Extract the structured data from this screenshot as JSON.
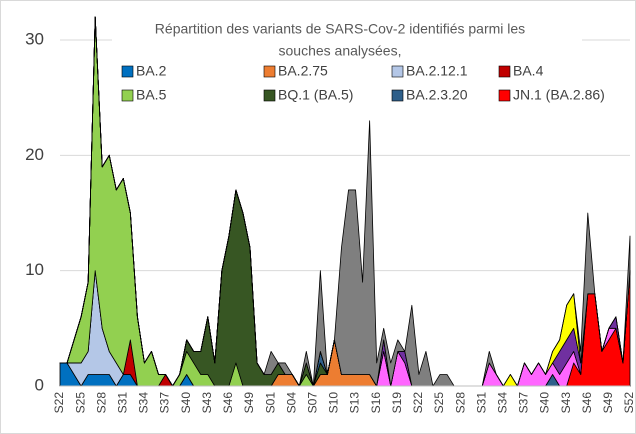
{
  "chart_data": {
    "type": "stacked_area",
    "title": [
      "Répartition des variants de SARS-Cov-2 identifiés parmi les",
      "souches analysées,"
    ],
    "categories": [
      "S22",
      null,
      null,
      "S25",
      null,
      null,
      "S28",
      null,
      null,
      "S31",
      null,
      null,
      "S34",
      null,
      null,
      "S37",
      null,
      null,
      "S40",
      null,
      null,
      "S43",
      null,
      null,
      "S46",
      null,
      null,
      "S49",
      null,
      null,
      "S01",
      null,
      null,
      "S04",
      null,
      null,
      "S07",
      null,
      null,
      "S10",
      null,
      null,
      "S13",
      null,
      null,
      "S16",
      null,
      null,
      "S19",
      null,
      null,
      "S22",
      null,
      null,
      "S25",
      null,
      null,
      "S28",
      null,
      null,
      "S31",
      null,
      null,
      "S34",
      null,
      null,
      "S37",
      null,
      null,
      "S40",
      null,
      null,
      "S43",
      null,
      null,
      "S46",
      null,
      null,
      "S49",
      null,
      null,
      "S52"
    ],
    "series": [
      {
        "name": "BA.2",
        "color": "#0070c0",
        "values": [
          2,
          2,
          1,
          0,
          1,
          1,
          1,
          1,
          0,
          1,
          1,
          0,
          0,
          0,
          0,
          0,
          0,
          0,
          1,
          0,
          0,
          0,
          0,
          0,
          0,
          0,
          0,
          0,
          0,
          0,
          0,
          0,
          0,
          0,
          0,
          0,
          0,
          0,
          0,
          0,
          0,
          0,
          0,
          0,
          0,
          0,
          0,
          0,
          0,
          0,
          0,
          0,
          0,
          0,
          0,
          0,
          0,
          0,
          0,
          0,
          0,
          0,
          0,
          0,
          0,
          0,
          0,
          0,
          0,
          0,
          0,
          0,
          0,
          0,
          0,
          0,
          0,
          0,
          0,
          0,
          0,
          0
        ]
      },
      {
        "name": "BA.2.75",
        "color": "#ed7d31",
        "values": [
          0,
          0,
          0,
          0,
          0,
          0,
          0,
          0,
          0,
          0,
          0,
          0,
          0,
          0,
          0,
          0,
          0,
          0,
          0,
          0,
          0,
          0,
          0,
          0,
          0,
          0,
          0,
          0,
          0,
          0,
          0,
          1,
          1,
          1,
          0,
          0,
          0,
          1,
          1,
          4,
          1,
          1,
          1,
          1,
          1,
          0,
          0,
          0,
          0,
          0,
          0,
          0,
          0,
          0,
          0,
          0,
          0,
          0,
          0,
          0,
          0,
          0,
          0,
          0,
          0,
          0,
          0,
          0,
          0,
          0,
          0,
          0,
          0,
          0,
          0,
          0,
          0,
          0,
          0,
          0,
          0,
          0
        ]
      },
      {
        "name": "BA.2.12.1",
        "color": "#b4c7e7",
        "values": [
          0,
          0,
          1,
          2,
          2,
          9,
          4,
          2,
          2,
          0,
          0,
          0,
          0,
          0,
          0,
          0,
          0,
          0,
          0,
          0,
          0,
          0,
          0,
          0,
          0,
          0,
          0,
          0,
          0,
          0,
          0,
          0,
          0,
          0,
          0,
          0,
          0,
          0,
          0,
          0,
          0,
          0,
          0,
          0,
          0,
          0,
          0,
          0,
          0,
          0,
          0,
          0,
          0,
          0,
          0,
          0,
          0,
          0,
          0,
          0,
          0,
          0,
          0,
          0,
          0,
          0,
          0,
          0,
          0,
          0,
          0,
          0,
          0,
          0,
          0,
          0,
          0,
          0,
          0,
          0,
          0,
          0
        ]
      },
      {
        "name": "BA.4",
        "color": "#c00000",
        "values": [
          0,
          0,
          0,
          0,
          0,
          0,
          0,
          0,
          0,
          0,
          3,
          0,
          0,
          0,
          0,
          1,
          0,
          0,
          0,
          0,
          0,
          0,
          0,
          0,
          0,
          0,
          0,
          0,
          0,
          0,
          0,
          0,
          0,
          0,
          0,
          0,
          0,
          0,
          0,
          0,
          0,
          0,
          0,
          0,
          0,
          0,
          0,
          0,
          0,
          0,
          0,
          0,
          0,
          0,
          0,
          0,
          0,
          0,
          0,
          0,
          0,
          0,
          0,
          0,
          0,
          0,
          0,
          0,
          0,
          0,
          0,
          0,
          0,
          0,
          0,
          0,
          0,
          0,
          0,
          0,
          0,
          0
        ]
      },
      {
        "name": "BA.5",
        "color": "#92d050",
        "values": [
          0,
          0,
          2,
          4,
          6,
          22,
          14,
          17,
          15,
          17,
          11,
          6,
          2,
          3,
          1,
          0,
          0,
          1,
          2,
          2,
          1,
          1,
          0,
          0,
          0,
          2,
          0,
          0,
          0,
          0,
          0,
          0,
          0,
          0,
          0,
          1,
          0,
          0,
          0,
          0,
          0,
          0,
          0,
          0,
          0,
          0,
          0,
          0,
          0,
          0,
          0,
          0,
          0,
          0,
          0,
          0,
          0,
          0,
          0,
          0,
          0,
          0,
          0,
          0,
          0,
          0,
          0,
          0,
          0,
          0,
          0,
          0,
          0,
          0,
          0,
          0,
          0,
          0,
          0,
          0,
          0,
          0
        ]
      },
      {
        "name": "BQ.1 (BA.5)",
        "color": "#375623",
        "values": [
          0,
          0,
          0,
          0,
          0,
          0,
          0,
          0,
          0,
          0,
          0,
          0,
          0,
          0,
          0,
          0,
          0,
          0,
          1,
          1,
          2,
          5,
          2,
          10,
          13,
          15,
          15,
          12,
          2,
          1,
          1,
          1,
          0,
          0,
          0,
          1,
          0,
          1,
          0,
          0,
          0,
          0,
          0,
          0,
          0,
          0,
          0,
          0,
          0,
          0,
          0,
          0,
          0,
          0,
          0,
          0,
          0,
          0,
          0,
          0,
          0,
          0,
          0,
          0,
          0,
          0,
          0,
          0,
          0,
          0,
          0,
          0,
          0,
          0,
          0,
          0,
          0,
          0,
          0,
          0,
          0,
          0
        ]
      },
      {
        "name": "BA.2.3.20",
        "color": "#2e5f8a",
        "values": [
          0,
          0,
          0,
          0,
          0,
          0,
          0,
          0,
          0,
          0,
          0,
          0,
          0,
          0,
          0,
          0,
          0,
          0,
          0,
          0,
          0,
          0,
          0,
          0,
          0,
          0,
          0,
          0,
          0,
          0,
          0,
          0,
          0,
          0,
          0,
          0,
          0,
          1,
          0,
          0,
          0,
          0,
          0,
          0,
          0,
          0,
          0,
          0,
          0,
          0,
          0,
          0,
          0,
          0,
          0,
          0,
          0,
          0,
          0,
          0,
          0,
          0,
          0,
          0,
          0,
          0,
          0,
          0,
          0,
          0,
          1,
          0,
          0,
          0,
          0,
          0,
          0,
          0,
          0,
          0,
          0,
          0
        ]
      },
      {
        "name": "JN.1 (BA.2.86)",
        "color": "#ff0000",
        "values": [
          0,
          0,
          0,
          0,
          0,
          0,
          0,
          0,
          0,
          0,
          0,
          0,
          0,
          0,
          0,
          0,
          0,
          0,
          0,
          0,
          0,
          0,
          0,
          0,
          0,
          0,
          0,
          0,
          0,
          0,
          0,
          0,
          0,
          0,
          0,
          0,
          0,
          0,
          0,
          0,
          0,
          0,
          0,
          0,
          0,
          0,
          0,
          0,
          0,
          0,
          0,
          0,
          0,
          0,
          0,
          0,
          0,
          0,
          0,
          0,
          0,
          0,
          0,
          0,
          0,
          0,
          0,
          0,
          0,
          0,
          0,
          0,
          0,
          2,
          1,
          8,
          8,
          3,
          4,
          5,
          2,
          10
        ]
      },
      {
        "color": "#ff66ff",
        "values": [
          0,
          0,
          0,
          0,
          0,
          0,
          0,
          0,
          0,
          0,
          0,
          0,
          0,
          0,
          0,
          0,
          0,
          0,
          0,
          0,
          0,
          0,
          0,
          0,
          0,
          0,
          0,
          0,
          0,
          0,
          0,
          0,
          0,
          0,
          0,
          0,
          0,
          0,
          0,
          0,
          0,
          0,
          0,
          0,
          0,
          0,
          3,
          0,
          3,
          2,
          0,
          0,
          0,
          0,
          0,
          0,
          0,
          0,
          0,
          0,
          0,
          2,
          1,
          0,
          0,
          0,
          2,
          1,
          2,
          1,
          1,
          1,
          2,
          1,
          0,
          0,
          0,
          0,
          1,
          0,
          0,
          0
        ]
      },
      {
        "color": "#7030a0",
        "values": [
          0,
          0,
          0,
          0,
          0,
          0,
          0,
          0,
          0,
          0,
          0,
          0,
          0,
          0,
          0,
          0,
          0,
          0,
          0,
          0,
          0,
          0,
          0,
          0,
          0,
          0,
          0,
          0,
          0,
          0,
          0,
          0,
          0,
          0,
          0,
          0,
          0,
          0,
          0,
          0,
          0,
          0,
          0,
          0,
          0,
          0,
          1,
          0,
          0,
          1,
          0,
          0,
          0,
          0,
          0,
          0,
          0,
          0,
          0,
          0,
          0,
          0,
          0,
          0,
          0,
          0,
          0,
          0,
          0,
          0,
          0,
          2,
          2,
          2,
          1,
          0,
          0,
          0,
          0,
          1,
          0,
          0
        ]
      },
      {
        "color": "#ffff00",
        "values": [
          0,
          0,
          0,
          0,
          0,
          0,
          0,
          0,
          0,
          0,
          0,
          0,
          0,
          0,
          0,
          0,
          0,
          0,
          0,
          0,
          0,
          0,
          0,
          0,
          0,
          0,
          0,
          0,
          0,
          0,
          0,
          0,
          0,
          0,
          0,
          0,
          0,
          0,
          0,
          0,
          0,
          0,
          0,
          0,
          0,
          0,
          0,
          0,
          0,
          0,
          0,
          0,
          0,
          0,
          0,
          0,
          0,
          0,
          0,
          0,
          0,
          0,
          0,
          0,
          1,
          0,
          0,
          0,
          0,
          0,
          1,
          1,
          3,
          3,
          0,
          0,
          0,
          0,
          0,
          0,
          0,
          0
        ]
      },
      {
        "color": "#7f7f7f",
        "values": [
          0,
          0,
          0,
          0,
          0,
          0,
          0,
          0,
          0,
          0,
          0,
          0,
          0,
          0,
          0,
          0,
          0,
          0,
          0,
          0,
          0,
          0,
          0,
          0,
          0,
          0,
          0,
          0,
          0,
          0,
          2,
          0,
          1,
          0,
          0,
          1,
          0,
          7,
          0,
          0,
          11,
          16,
          16,
          8,
          22,
          2,
          1,
          2,
          1,
          0,
          7,
          1,
          3,
          0,
          1,
          1,
          0,
          0,
          0,
          0,
          0,
          1,
          0,
          0,
          0,
          0,
          0,
          0,
          0,
          0,
          0,
          0,
          0,
          0,
          1,
          7,
          0,
          0,
          0,
          0,
          0,
          3
        ]
      }
    ],
    "ylim": [
      0,
      30
    ],
    "yticks": [
      0,
      10,
      20,
      30
    ],
    "grid": true
  }
}
